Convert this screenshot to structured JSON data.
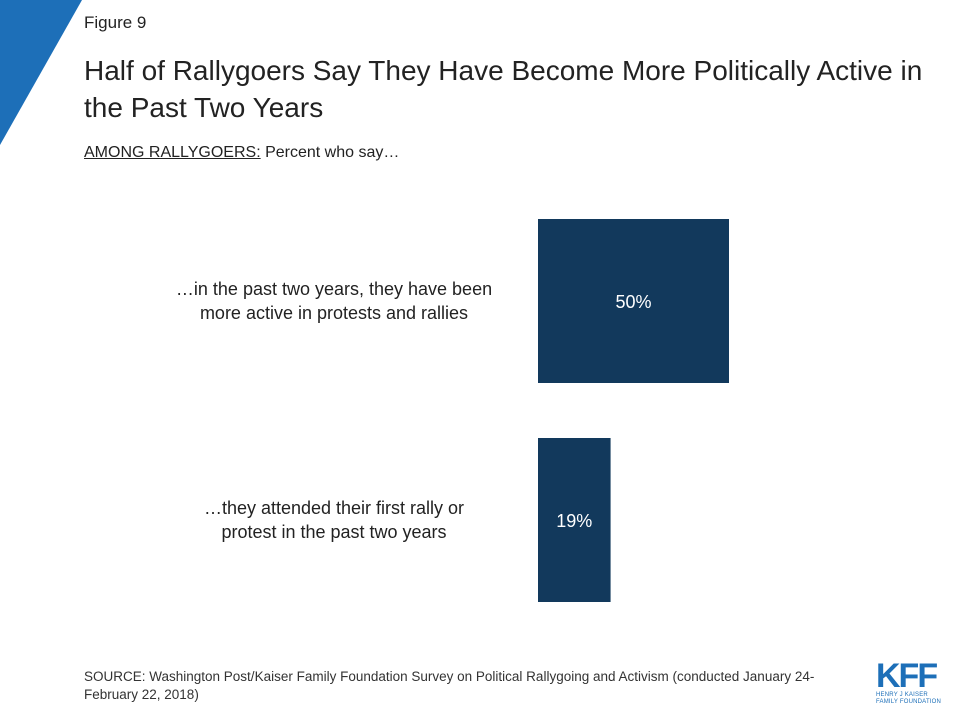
{
  "figure_label": "Figure 9",
  "title": "Half of Rallygoers Say They Have Become More Politically Active in the Past Two Years",
  "subtitle": {
    "underlined": "AMONG RALLYGOERS:",
    "rest": " Percent who say…"
  },
  "source": "SOURCE: Washington Post/Kaiser Family Foundation Survey on Political Rallygoing and Activism (conducted January 24-February 22, 2018)",
  "logo": {
    "letters": "KFF",
    "line1": "HENRY J KAISER",
    "line2": "FAMILY FOUNDATION"
  },
  "colors": {
    "bar": "#12395c",
    "accent": "#1d6fb8"
  },
  "chart_data": {
    "type": "bar",
    "orientation": "horizontal",
    "categories": [
      [
        "…in the past two years, they have been",
        "more active in protests and rallies"
      ],
      [
        "…they attended their first rally or",
        "protest in the past two years"
      ]
    ],
    "values": [
      50,
      19
    ],
    "data_labels": [
      "50%",
      "19%"
    ],
    "xlim": [
      0,
      100
    ],
    "grid": false,
    "legend": "none"
  }
}
